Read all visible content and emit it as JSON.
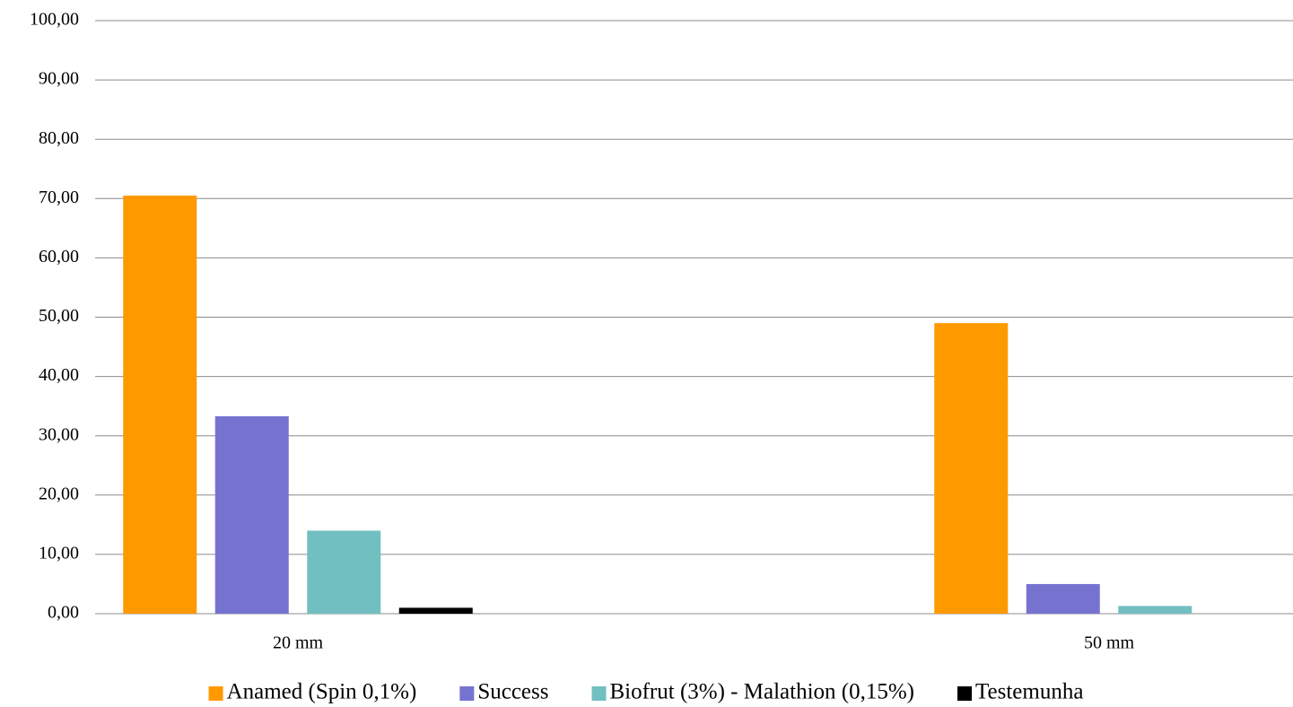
{
  "chart_data": {
    "type": "bar",
    "categories": [
      "20 mm",
      null,
      "50 mm"
    ],
    "series": [
      {
        "name": "Anamed (Spin 0,1%)",
        "color": "#ff9900",
        "values": [
          70.5,
          null,
          49.0
        ]
      },
      {
        "name": "Success",
        "color": "#7673d0",
        "values": [
          33.3,
          null,
          5.0
        ]
      },
      {
        "name": "Biofrut (3%) - Malathion (0,15%)",
        "color": "#72bfc2",
        "values": [
          14.0,
          null,
          1.3
        ]
      },
      {
        "name": "Testemunha",
        "color": "#000000",
        "values": [
          1.0,
          null,
          0
        ]
      }
    ],
    "ylim": [
      0,
      100
    ],
    "yticks": [
      {
        "value": 0,
        "label": "0,00"
      },
      {
        "value": 10,
        "label": "10,00"
      },
      {
        "value": 20,
        "label": "20,00"
      },
      {
        "value": 30,
        "label": "30,00"
      },
      {
        "value": 40,
        "label": "40,00"
      },
      {
        "value": 50,
        "label": "50,00"
      },
      {
        "value": 60,
        "label": "60,00"
      },
      {
        "value": 70,
        "label": "70,00"
      },
      {
        "value": 80,
        "label": "80,00"
      },
      {
        "value": 90,
        "label": "90,00"
      },
      {
        "value": 100,
        "label": "100,00"
      }
    ],
    "grid": true,
    "legend": "bottom"
  }
}
